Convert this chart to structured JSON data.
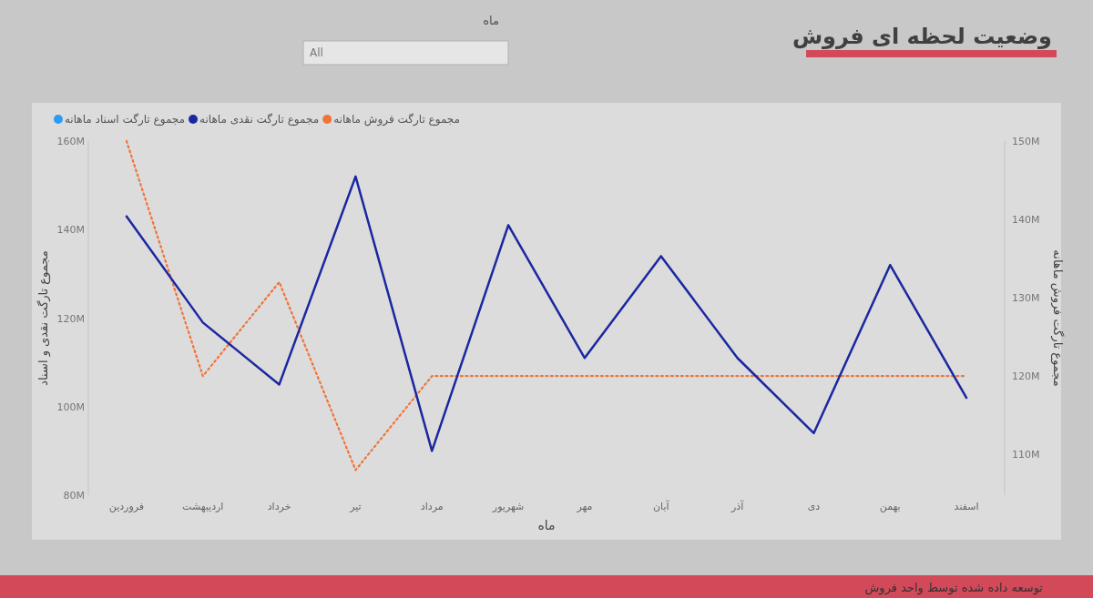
{
  "chart_data": {
    "type": "line",
    "title": "وضعیت لحظه ای فروش",
    "xlabel": "ماه",
    "ylabel": "مجموع تارگت نقدی و اسناد",
    "y2label": "مجموع تارگت فروش ماهانه",
    "categories": [
      "فروردین",
      "اردیبهشت",
      "خرداد",
      "تیر",
      "مرداد",
      "شهریور",
      "مهر",
      "آبان",
      "آذر",
      "دی",
      "بهمن",
      "اسفند"
    ],
    "series": [
      {
        "name": "مجموع تارگت فروش ماهانه",
        "color": "#f07438",
        "axis": "y2",
        "line_style": "dotted",
        "values": [
          150,
          120,
          132,
          108,
          120,
          120,
          120,
          120,
          120,
          120,
          120,
          120
        ]
      },
      {
        "name": "مجموع تارگت نقدی ماهانه",
        "color": "#1a27a0",
        "axis": "y",
        "line_style": "solid",
        "values": [
          143,
          119,
          105,
          152,
          90,
          141,
          111,
          134,
          111,
          94,
          132,
          102
        ]
      },
      {
        "name": "مجموع تارگت اسناد ماهانه",
        "color": "#2d9cf0",
        "axis": "y",
        "values": [
          null,
          null,
          null,
          null,
          null,
          null,
          null,
          null,
          null,
          null,
          null,
          null
        ]
      }
    ],
    "ylim": [
      80,
      160
    ],
    "yticks": [
      {
        "value": 80,
        "label": "80M"
      },
      {
        "value": 100,
        "label": "100M"
      },
      {
        "value": 120,
        "label": "120M"
      },
      {
        "value": 140,
        "label": "140M"
      },
      {
        "value": 160,
        "label": "160M"
      }
    ],
    "y2lim": [
      104.8,
      150
    ],
    "y2ticks": [
      {
        "value": 110,
        "label": "110M"
      },
      {
        "value": 120,
        "label": "120M"
      },
      {
        "value": 130,
        "label": "130M"
      },
      {
        "value": 140,
        "label": "140M"
      },
      {
        "value": 150,
        "label": "150M"
      }
    ],
    "legend": "top left",
    "grid": false,
    "marker": "none",
    "annotations": [
      "ماه",
      "All",
      "توسعه داده شده توسط واحد فروش"
    ]
  }
}
